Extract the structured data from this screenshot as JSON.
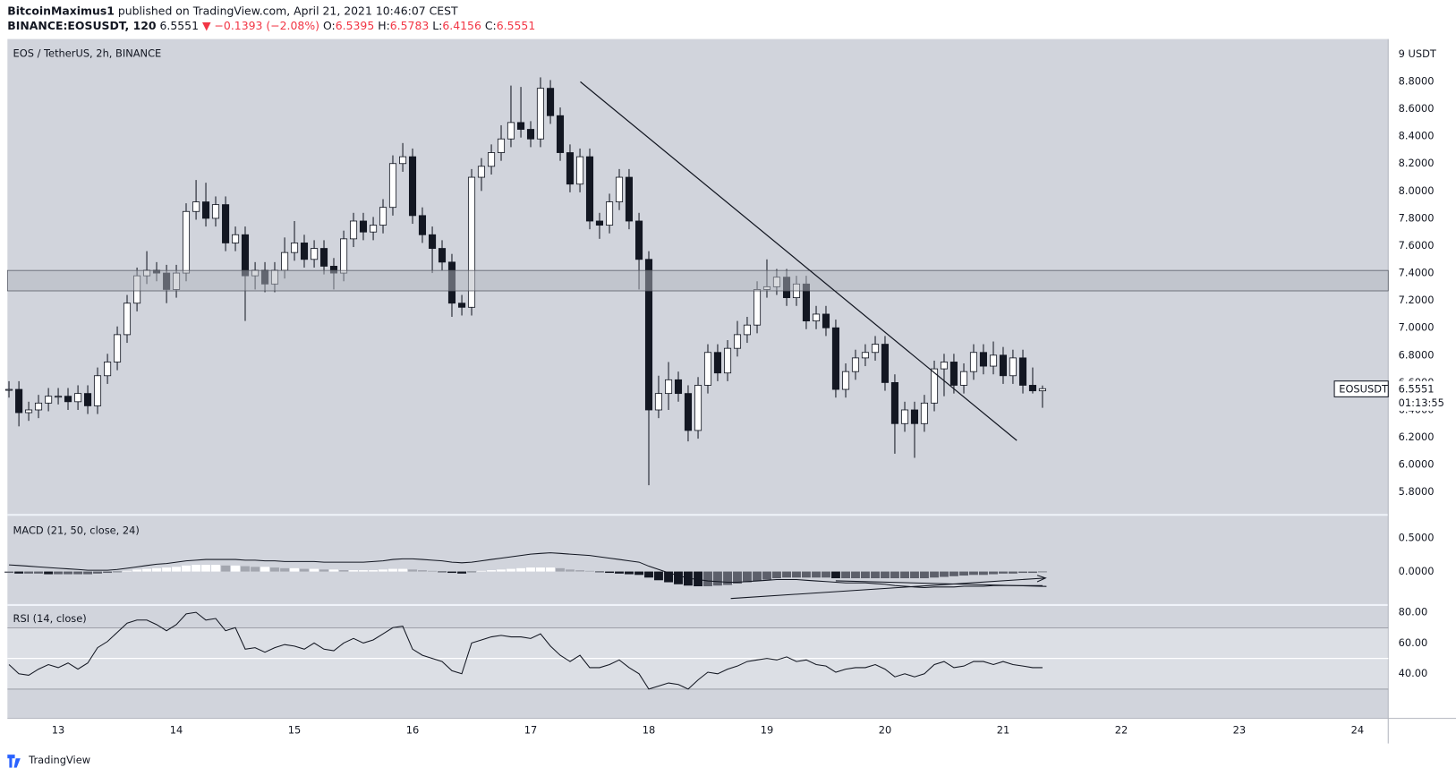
{
  "header": {
    "author": "BitcoinMaximus1",
    "published": "published on TradingView.com, April 21, 2021 10:46:07 CEST",
    "symbol": "BINANCE:EOSUSDT, 120",
    "change": "▼ −0.1393 (−2.08%)",
    "ohlc_labels": [
      "O:",
      "H:",
      "L:",
      "C:"
    ],
    "ticker": "EOSUSDT",
    "countdown": "01:13:55"
  },
  "footer": {
    "brand": "TradingView"
  },
  "chart_data": [
    {
      "type": "candlestick",
      "title": "EOS / TetherUS, 2h, BINANCE",
      "up_color": "#ffffff",
      "down_color": "#131722",
      "x": [
        12.583,
        12.667,
        12.75,
        12.833,
        12.917,
        13,
        13.083,
        13.167,
        13.25,
        13.333,
        13.417,
        13.5,
        13.583,
        13.667,
        13.75,
        13.833,
        13.917,
        14,
        14.083,
        14.167,
        14.25,
        14.333,
        14.417,
        14.5,
        14.583,
        14.667,
        14.75,
        14.833,
        14.917,
        15,
        15.083,
        15.167,
        15.25,
        15.333,
        15.417,
        15.5,
        15.583,
        15.667,
        15.75,
        15.833,
        15.917,
        16,
        16.083,
        16.167,
        16.25,
        16.333,
        16.417,
        16.5,
        16.583,
        16.667,
        16.75,
        16.833,
        16.917,
        17,
        17.083,
        17.167,
        17.25,
        17.333,
        17.417,
        17.5,
        17.583,
        17.667,
        17.75,
        17.833,
        17.917,
        18,
        18.083,
        18.167,
        18.25,
        18.333,
        18.417,
        18.5,
        18.583,
        18.667,
        18.75,
        18.833,
        18.917,
        19,
        19.083,
        19.167,
        19.25,
        19.333,
        19.417,
        19.5,
        19.583,
        19.667,
        19.75,
        19.833,
        19.917,
        20,
        20.083,
        20.167,
        20.25,
        20.333,
        20.417,
        20.5,
        20.583,
        20.667,
        20.75,
        20.833,
        20.917,
        21,
        21.083,
        21.167,
        21.25,
        21.333
      ],
      "open": [
        6.55,
        6.55,
        6.38,
        6.4,
        6.45,
        6.5,
        6.5,
        6.46,
        6.52,
        6.43,
        6.65,
        6.75,
        6.95,
        7.18,
        7.38,
        7.42,
        7.4,
        7.28,
        7.4,
        7.85,
        7.92,
        7.8,
        7.9,
        7.62,
        7.68,
        7.38,
        7.42,
        7.32,
        7.42,
        7.55,
        7.62,
        7.5,
        7.58,
        7.45,
        7.4,
        7.65,
        7.78,
        7.7,
        7.75,
        7.88,
        8.2,
        8.25,
        7.82,
        7.68,
        7.58,
        7.48,
        7.18,
        7.15,
        8.1,
        8.18,
        8.28,
        8.38,
        8.5,
        8.45,
        8.38,
        8.75,
        8.55,
        8.28,
        8.05,
        8.25,
        7.78,
        7.75,
        7.92,
        8.1,
        7.78,
        7.5,
        6.4,
        6.52,
        6.62,
        6.52,
        6.25,
        6.58,
        6.82,
        6.67,
        6.85,
        6.95,
        7.02,
        7.28,
        7.3,
        7.37,
        7.22,
        7.32,
        7.05,
        7.1,
        7.0,
        6.55,
        6.68,
        6.78,
        6.82,
        6.88,
        6.6,
        6.3,
        6.4,
        6.3,
        6.45,
        6.7,
        6.75,
        6.58,
        6.68,
        6.82,
        6.72,
        6.8,
        6.65,
        6.78,
        6.58,
        6.5395
      ],
      "high": [
        6.61,
        6.61,
        6.46,
        6.51,
        6.56,
        6.56,
        6.56,
        6.58,
        6.58,
        6.71,
        6.81,
        7.01,
        7.24,
        7.44,
        7.56,
        7.48,
        7.46,
        7.46,
        7.91,
        8.08,
        8.06,
        7.96,
        7.96,
        7.74,
        7.74,
        7.48,
        7.48,
        7.48,
        7.66,
        7.78,
        7.68,
        7.64,
        7.64,
        7.51,
        7.71,
        7.84,
        7.84,
        7.81,
        7.94,
        8.26,
        8.35,
        8.31,
        7.88,
        7.74,
        7.64,
        7.54,
        7.24,
        8.16,
        8.24,
        8.34,
        8.48,
        8.77,
        8.76,
        8.51,
        8.83,
        8.81,
        8.61,
        8.34,
        8.31,
        8.31,
        7.84,
        7.98,
        8.16,
        8.16,
        7.84,
        7.56,
        6.65,
        6.75,
        6.68,
        6.58,
        6.64,
        6.88,
        6.88,
        6.91,
        7.05,
        7.08,
        7.34,
        7.5,
        7.43,
        7.43,
        7.38,
        7.38,
        7.16,
        7.16,
        7.06,
        6.74,
        6.84,
        6.88,
        6.94,
        6.94,
        6.66,
        6.46,
        6.46,
        6.51,
        6.76,
        6.81,
        6.81,
        6.74,
        6.88,
        6.88,
        6.9,
        6.86,
        6.84,
        6.84,
        6.71,
        6.5783
      ],
      "low": [
        6.49,
        6.28,
        6.32,
        6.34,
        6.39,
        6.44,
        6.4,
        6.4,
        6.37,
        6.37,
        6.59,
        6.69,
        6.89,
        7.12,
        7.32,
        7.34,
        7.18,
        7.22,
        7.34,
        7.79,
        7.74,
        7.74,
        7.56,
        7.56,
        7.05,
        7.28,
        7.26,
        7.26,
        7.36,
        7.49,
        7.44,
        7.44,
        7.39,
        7.28,
        7.34,
        7.59,
        7.64,
        7.64,
        7.69,
        7.82,
        8.14,
        7.76,
        7.62,
        7.4,
        7.42,
        7.08,
        7.09,
        7.09,
        8.0,
        8.12,
        8.22,
        8.32,
        8.39,
        8.32,
        8.32,
        8.49,
        8.22,
        7.99,
        7.99,
        7.72,
        7.65,
        7.69,
        7.86,
        7.72,
        7.28,
        5.85,
        6.34,
        6.4,
        6.46,
        6.17,
        6.19,
        6.52,
        6.61,
        6.61,
        6.79,
        6.89,
        6.96,
        7.22,
        7.24,
        7.16,
        7.16,
        6.99,
        6.99,
        6.94,
        6.49,
        6.49,
        6.62,
        6.72,
        6.76,
        6.54,
        6.08,
        6.24,
        6.05,
        6.24,
        6.39,
        6.5,
        6.52,
        6.52,
        6.62,
        6.66,
        6.66,
        6.59,
        6.59,
        6.52,
        6.52,
        6.4156
      ],
      "close": [
        6.55,
        6.38,
        6.4,
        6.45,
        6.5,
        6.5,
        6.46,
        6.52,
        6.43,
        6.65,
        6.75,
        6.95,
        7.18,
        7.38,
        7.42,
        7.4,
        7.28,
        7.4,
        7.85,
        7.92,
        7.8,
        7.9,
        7.62,
        7.68,
        7.38,
        7.42,
        7.32,
        7.42,
        7.55,
        7.62,
        7.5,
        7.58,
        7.45,
        7.4,
        7.65,
        7.78,
        7.7,
        7.75,
        7.88,
        8.2,
        8.25,
        7.82,
        7.68,
        7.58,
        7.48,
        7.18,
        7.15,
        8.1,
        8.18,
        8.28,
        8.38,
        8.5,
        8.45,
        8.38,
        8.75,
        8.55,
        8.28,
        8.05,
        8.25,
        7.78,
        7.75,
        7.92,
        8.1,
        7.78,
        7.5,
        6.4,
        6.52,
        6.62,
        6.52,
        6.25,
        6.58,
        6.82,
        6.67,
        6.85,
        6.95,
        7.02,
        7.28,
        7.3,
        7.37,
        7.22,
        7.32,
        7.05,
        7.1,
        7.0,
        6.55,
        6.68,
        6.78,
        6.82,
        6.88,
        6.6,
        6.3,
        6.4,
        6.3,
        6.45,
        6.7,
        6.75,
        6.58,
        6.68,
        6.82,
        6.72,
        6.8,
        6.65,
        6.78,
        6.58,
        6.5395,
        6.5551
      ],
      "xlim": [
        12.57,
        24.26
      ],
      "xticks": [
        13,
        14,
        15,
        16,
        17,
        18,
        19,
        20,
        21,
        22,
        23,
        24
      ],
      "ylim": [
        5.64,
        9.11
      ],
      "yticks": [
        {
          "value": 9,
          "label": "9 USDT"
        },
        {
          "value": 8.8,
          "label": "8.8000"
        },
        {
          "value": 8.6,
          "label": "8.6000"
        },
        {
          "value": 8.4,
          "label": "8.4000"
        },
        {
          "value": 8.2,
          "label": "8.2000"
        },
        {
          "value": 8,
          "label": "8.0000"
        },
        {
          "value": 7.8,
          "label": "7.8000"
        },
        {
          "value": 7.6,
          "label": "7.6000"
        },
        {
          "value": 7.4,
          "label": "7.4000"
        },
        {
          "value": 7.2,
          "label": "7.2000"
        },
        {
          "value": 7,
          "label": "7.0000"
        },
        {
          "value": 6.8,
          "label": "6.8000"
        },
        {
          "value": 6.6,
          "label": "6.6000"
        },
        {
          "value": 6.4,
          "label": "6.4000"
        },
        {
          "value": 6.2,
          "label": "6.2000"
        },
        {
          "value": 6,
          "label": "6.0000"
        },
        {
          "value": 5.8,
          "label": "5.8000"
        }
      ]
    },
    {
      "type": "macd",
      "title": "MACD (21, 50, close, 24)",
      "line_color": "#131722",
      "bar_colors": [
        "#ffffff",
        "#a3a6af",
        "#131722",
        "#5d606b"
      ],
      "histogram": [
        -0.02,
        -0.03,
        -0.03,
        -0.03,
        -0.04,
        -0.04,
        -0.04,
        -0.04,
        -0.04,
        -0.03,
        -0.02,
        -0.01,
        0.01,
        0.03,
        0.04,
        0.05,
        0.06,
        0.07,
        0.09,
        0.1,
        0.1,
        0.1,
        0.09,
        0.09,
        0.08,
        0.07,
        0.07,
        0.06,
        0.05,
        0.05,
        0.04,
        0.04,
        0.03,
        0.03,
        0.02,
        0.02,
        0.02,
        0.02,
        0.03,
        0.04,
        0.04,
        0.03,
        0.02,
        0.01,
        -0.01,
        -0.02,
        -0.03,
        -0.01,
        0.01,
        0.02,
        0.03,
        0.04,
        0.05,
        0.06,
        0.06,
        0.06,
        0.05,
        0.03,
        0.02,
        0.01,
        -0.01,
        -0.02,
        -0.03,
        -0.04,
        -0.05,
        -0.09,
        -0.13,
        -0.16,
        -0.19,
        -0.21,
        -0.22,
        -0.22,
        -0.21,
        -0.2,
        -0.18,
        -0.16,
        -0.14,
        -0.12,
        -0.1,
        -0.09,
        -0.09,
        -0.09,
        -0.09,
        -0.09,
        -0.1,
        -0.1,
        -0.1,
        -0.1,
        -0.1,
        -0.1,
        -0.1,
        -0.1,
        -0.1,
        -0.1,
        -0.09,
        -0.08,
        -0.07,
        -0.06,
        -0.05,
        -0.05,
        -0.04,
        -0.03,
        -0.03,
        -0.02,
        -0.02,
        -0.01
      ],
      "line": [
        0.1,
        0.09,
        0.08,
        0.07,
        0.06,
        0.05,
        0.04,
        0.03,
        0.02,
        0.02,
        0.02,
        0.03,
        0.05,
        0.07,
        0.09,
        0.11,
        0.12,
        0.14,
        0.16,
        0.17,
        0.18,
        0.18,
        0.18,
        0.18,
        0.17,
        0.17,
        0.16,
        0.16,
        0.15,
        0.15,
        0.15,
        0.15,
        0.14,
        0.14,
        0.14,
        0.14,
        0.14,
        0.15,
        0.16,
        0.18,
        0.19,
        0.19,
        0.18,
        0.17,
        0.16,
        0.14,
        0.13,
        0.14,
        0.16,
        0.18,
        0.2,
        0.22,
        0.24,
        0.26,
        0.27,
        0.28,
        0.27,
        0.26,
        0.25,
        0.24,
        0.22,
        0.2,
        0.18,
        0.16,
        0.14,
        0.08,
        0.03,
        -0.02,
        -0.06,
        -0.1,
        -0.12,
        -0.14,
        -0.15,
        -0.16,
        -0.16,
        -0.15,
        -0.14,
        -0.13,
        -0.12,
        -0.12,
        -0.12,
        -0.13,
        -0.14,
        -0.15,
        -0.16,
        -0.17,
        -0.17,
        -0.17,
        -0.18,
        -0.19,
        -0.21,
        -0.22,
        -0.23,
        -0.24,
        -0.23,
        -0.23,
        -0.23,
        -0.22,
        -0.22,
        -0.22,
        -0.21,
        -0.21,
        -0.21,
        -0.21,
        -0.21,
        -0.21
      ],
      "ylim": [
        -0.486,
        0.833
      ],
      "yticks": [
        {
          "value": 0.5,
          "label": "0.5000"
        },
        {
          "value": 0,
          "label": "0.0000"
        }
      ]
    },
    {
      "type": "line",
      "title": "RSI (14, close)",
      "color": "#131722",
      "band": [
        30,
        70
      ],
      "midline": 50,
      "values": [
        46,
        40,
        39,
        43,
        46,
        44,
        47,
        43,
        47,
        57,
        61,
        67,
        73,
        75,
        75,
        72,
        68,
        72,
        79,
        80,
        75,
        76,
        68,
        70,
        56,
        57,
        54,
        57,
        59,
        58,
        56,
        60,
        56,
        55,
        60,
        63,
        60,
        62,
        66,
        70,
        71,
        56,
        52,
        50,
        48,
        42,
        40,
        60,
        62,
        64,
        65,
        64,
        64,
        63,
        66,
        58,
        52,
        48,
        52,
        44,
        44,
        46,
        49,
        44,
        40,
        30,
        32,
        34,
        33,
        30,
        36,
        41,
        40,
        43,
        45,
        48,
        49,
        50,
        49,
        51,
        48,
        49,
        46,
        45,
        41,
        43,
        44,
        44,
        46,
        43,
        38,
        40,
        38,
        40,
        46,
        48,
        44,
        45,
        48,
        48,
        46,
        48,
        46,
        45,
        44,
        44
      ],
      "ylim": [
        11.5,
        84.2
      ],
      "yticks": [
        {
          "value": 80,
          "label": "80.00"
        },
        {
          "value": 60,
          "label": "60.00"
        },
        {
          "value": 40,
          "label": "40.00"
        }
      ]
    }
  ]
}
